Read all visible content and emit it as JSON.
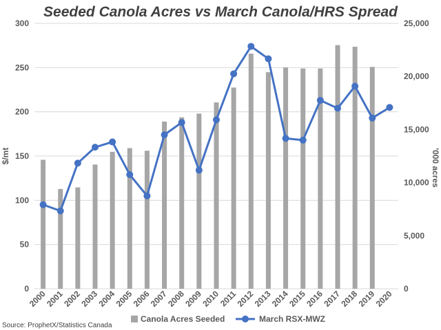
{
  "chart_data": {
    "type": "bar+line",
    "title": "Seeded Canola Acres vs March Canola/HRS Spread",
    "source": "Source: ProphetX/Statistics Canada",
    "categories": [
      "2000",
      "2001",
      "2002",
      "2003",
      "2004",
      "2005",
      "2006",
      "2007",
      "2008",
      "2009",
      "2010",
      "2011",
      "2012",
      "2013",
      "2014",
      "2015",
      "2016",
      "2017",
      "2018",
      "2019",
      "2020"
    ],
    "y_left": {
      "label": "$/mt",
      "min": 0,
      "max": 300,
      "ticks": [
        0,
        50,
        100,
        150,
        200,
        250,
        300
      ],
      "tick_labels": [
        "0",
        "50",
        "100",
        "150",
        "200",
        "250",
        "300"
      ]
    },
    "y_right": {
      "label": "'000 acres",
      "min": 0,
      "max": 25000,
      "ticks": [
        0,
        5000,
        10000,
        15000,
        20000,
        25000
      ],
      "tick_labels": [
        "0",
        "5,000",
        "10,000",
        "15,000",
        "20,000",
        "25,000"
      ]
    },
    "series": [
      {
        "name": "Canola Acres Seeded",
        "kind": "bar",
        "axis": "right",
        "color": "#a6a6a6",
        "values": [
          12150,
          9400,
          9550,
          11700,
          12900,
          13250,
          13000,
          15750,
          16150,
          16500,
          17550,
          18950,
          22150,
          20400,
          20850,
          20750,
          20750,
          22950,
          22800,
          20900,
          null
        ]
      },
      {
        "name": "March RSX-MWZ",
        "kind": "line",
        "axis": "left",
        "color": "#4472c4",
        "values": [
          95,
          88,
          142,
          160,
          166,
          129,
          105,
          174,
          188,
          134,
          191,
          243,
          274,
          260,
          170,
          168,
          213,
          204,
          229,
          193,
          205
        ]
      }
    ],
    "grid": "horizontal",
    "legend_position": "bottom"
  }
}
